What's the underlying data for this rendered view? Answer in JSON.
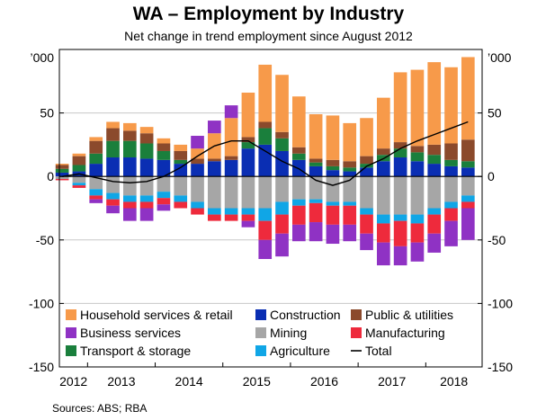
{
  "chart_data": {
    "type": "bar",
    "title": "WA – Employment by Industry",
    "subtitle": "Net change in trend employment since August 2012",
    "y_unit_label": "’000",
    "ylim": [
      -150,
      100
    ],
    "yticks": [
      -150,
      -100,
      -50,
      0,
      50
    ],
    "x_tick_labels": [
      "2012",
      "2013",
      "2014",
      "2015",
      "2016",
      "2017",
      "2018"
    ],
    "x_tick_dates": [
      "2012-08",
      "2013-08",
      "2014-08",
      "2015-08",
      "2016-08",
      "2017-08",
      "2018-08"
    ],
    "periods": [
      "2012-Q3",
      "2012-Q4",
      "2013-Q1",
      "2013-Q2",
      "2013-Q3",
      "2013-Q4",
      "2014-Q1",
      "2014-Q2",
      "2014-Q3",
      "2014-Q4",
      "2015-Q1",
      "2015-Q2",
      "2015-Q3",
      "2015-Q4",
      "2016-Q1",
      "2016-Q2",
      "2016-Q3",
      "2016-Q4",
      "2017-Q1",
      "2017-Q2",
      "2017-Q3",
      "2017-Q4",
      "2018-Q1",
      "2018-Q2",
      "2018-Q3"
    ],
    "series": [
      {
        "name": "Household services & retail",
        "color": "#f79a4a",
        "values": [
          1,
          2,
          3,
          5,
          6,
          5,
          4,
          5,
          8,
          20,
          30,
          35,
          45,
          45,
          40,
          35,
          35,
          30,
          30,
          40,
          55,
          60,
          65,
          60,
          65
        ]
      },
      {
        "name": "Construction",
        "color": "#0a2eb3",
        "values": [
          3,
          4,
          10,
          15,
          15,
          14,
          13,
          10,
          10,
          12,
          13,
          22,
          25,
          20,
          13,
          8,
          5,
          4,
          7,
          12,
          15,
          12,
          10,
          8,
          7
        ]
      },
      {
        "name": "Public & utilities",
        "color": "#8b4a2c",
        "values": [
          3,
          7,
          10,
          10,
          8,
          8,
          6,
          7,
          4,
          2,
          3,
          4,
          5,
          5,
          5,
          3,
          5,
          5,
          6,
          5,
          5,
          5,
          8,
          13,
          17
        ]
      },
      {
        "name": "Business services",
        "color": "#8f32c4",
        "values": [
          0,
          0,
          -3,
          -6,
          -10,
          -10,
          -5,
          0,
          10,
          10,
          10,
          -5,
          -15,
          -18,
          -13,
          -15,
          -15,
          -13,
          -13,
          -18,
          -15,
          -15,
          -15,
          -20,
          -25
        ]
      },
      {
        "name": "Mining",
        "color": "#a6a6a6",
        "values": [
          -2,
          -5,
          -10,
          -13,
          -15,
          -15,
          -12,
          -15,
          -20,
          -25,
          -25,
          -25,
          -25,
          -20,
          -18,
          -18,
          -20,
          -20,
          -25,
          -30,
          -30,
          -30,
          -25,
          -20,
          -15
        ]
      },
      {
        "name": "Manufacturing",
        "color": "#ee2a3c",
        "values": [
          -1,
          -2,
          -3,
          -5,
          -5,
          -5,
          -5,
          -5,
          -5,
          -5,
          -5,
          -5,
          -15,
          -15,
          -15,
          -15,
          -15,
          -15,
          -15,
          -15,
          -20,
          -15,
          -15,
          -10,
          -5
        ]
      },
      {
        "name": "Transport & storage",
        "color": "#1a7f3c",
        "values": [
          3,
          5,
          8,
          13,
          13,
          12,
          7,
          3,
          0,
          0,
          0,
          5,
          13,
          10,
          5,
          3,
          3,
          3,
          3,
          5,
          7,
          7,
          7,
          5,
          5
        ]
      },
      {
        "name": "Agriculture",
        "color": "#10a6e6",
        "values": [
          0,
          -2,
          -5,
          -5,
          -5,
          -5,
          -5,
          -5,
          -5,
          -5,
          -5,
          -5,
          -10,
          -10,
          -5,
          -3,
          -3,
          -3,
          -5,
          -7,
          -5,
          -7,
          -5,
          -5,
          -5
        ]
      },
      {
        "name": "Total",
        "color": "#000000",
        "type": "line",
        "values": [
          0,
          2,
          -1,
          -4,
          -5,
          -4,
          0,
          7,
          16,
          24,
          28,
          28,
          20,
          12,
          6,
          -3,
          -7,
          -3,
          8,
          14,
          22,
          28,
          33,
          38,
          43
        ]
      }
    ]
  },
  "source_text": "Sources:   ABS; RBA"
}
